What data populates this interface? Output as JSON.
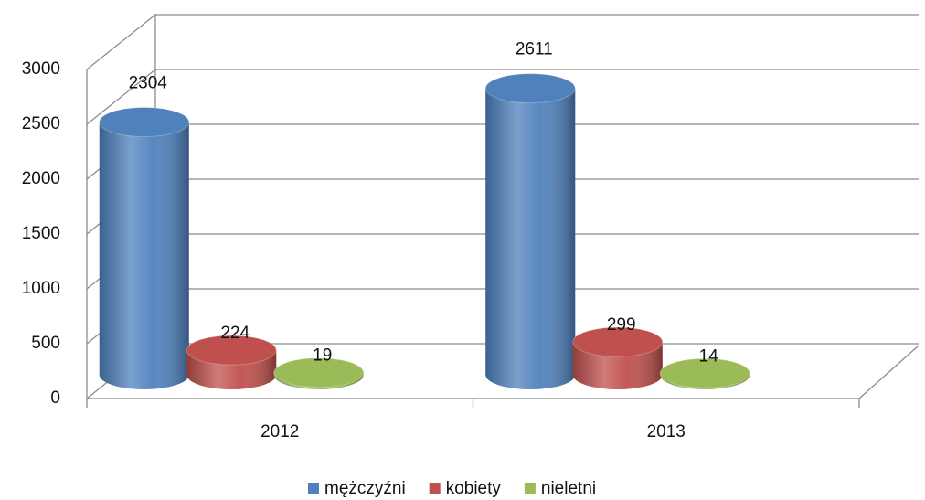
{
  "chart_data": {
    "type": "bar3d-cylinder",
    "categories": [
      "2012",
      "2013"
    ],
    "series": [
      {
        "name": "mężczyźni",
        "color": "#4f81bd",
        "values": [
          2304,
          2611
        ]
      },
      {
        "name": "kobiety",
        "color": "#c0504d",
        "values": [
          224,
          299
        ]
      },
      {
        "name": "nieletni",
        "color": "#9bbb59",
        "values": [
          19,
          14
        ]
      }
    ],
    "ylim": [
      0,
      3000
    ],
    "yticks": [
      0,
      500,
      1000,
      1500,
      2000,
      2500,
      3000
    ],
    "grid": true,
    "legend": "bottom"
  }
}
